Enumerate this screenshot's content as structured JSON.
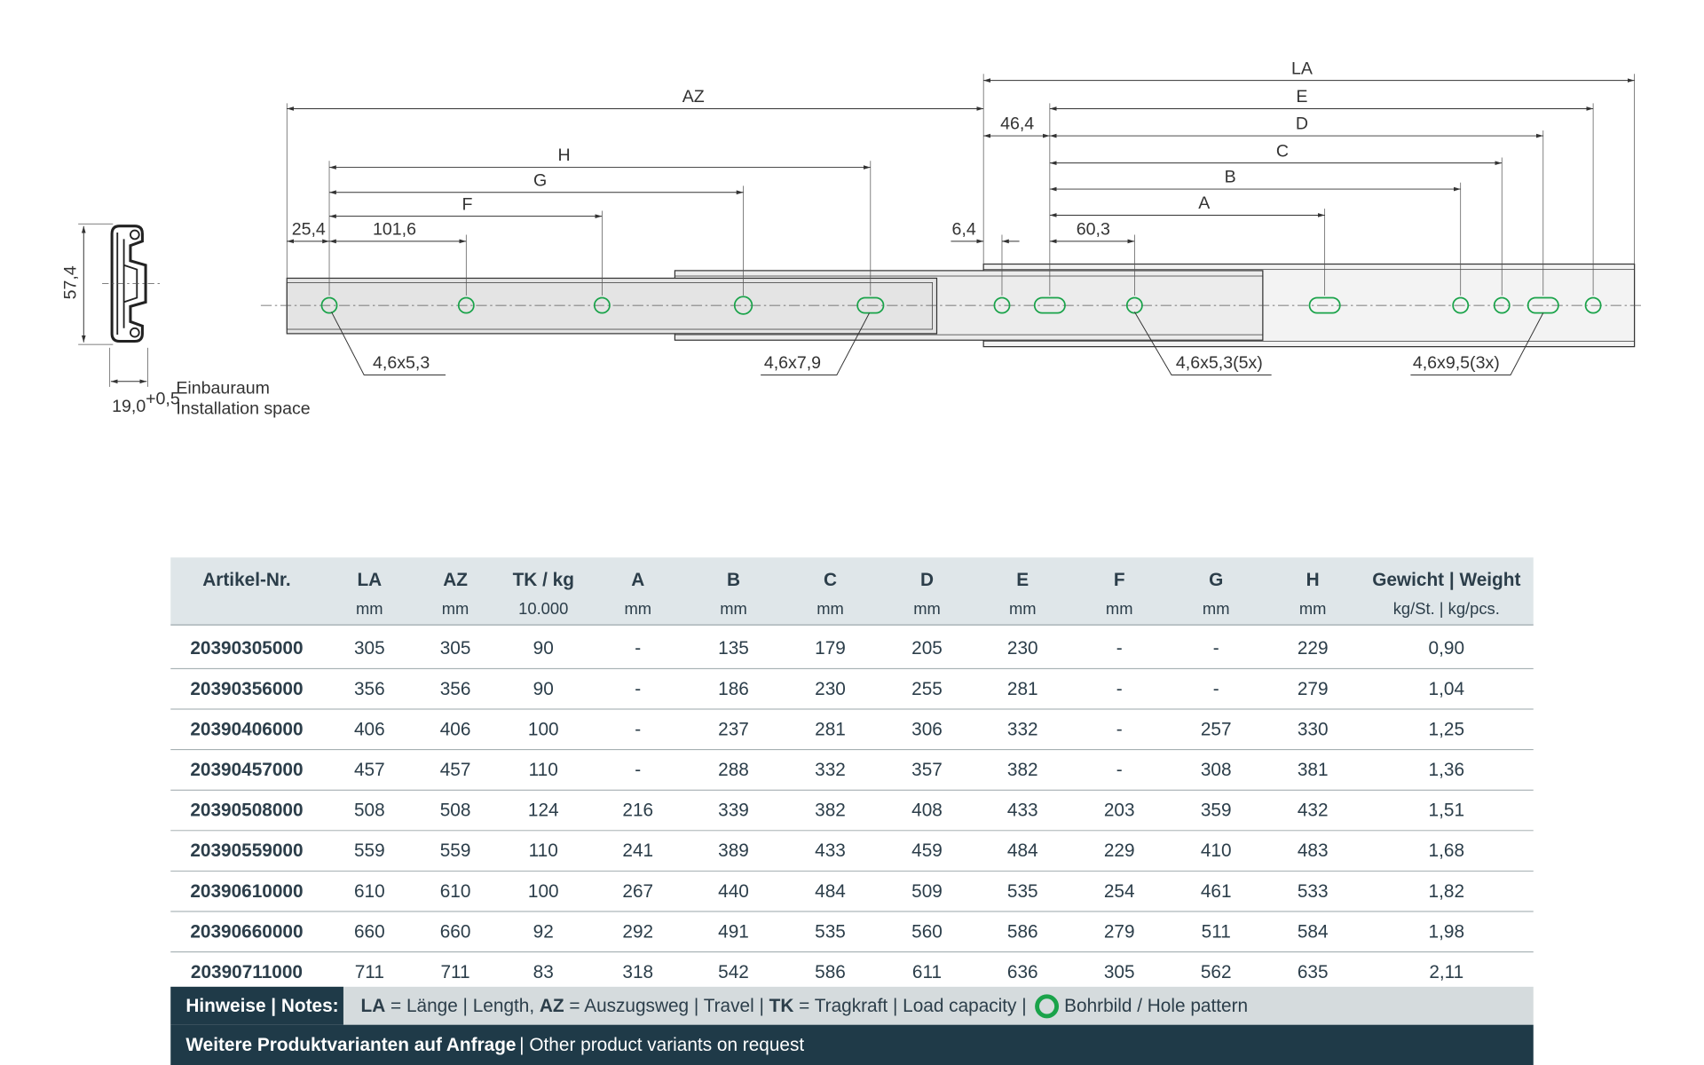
{
  "drawing": {
    "dimensions": [
      "LA",
      "E",
      "D",
      "C",
      "B",
      "A",
      "AZ",
      "46,4",
      "H",
      "G",
      "F",
      "25,4",
      "101,6",
      "6,4",
      "60,3"
    ],
    "callouts": [
      "4,6x5,3",
      "4,6x7,9",
      "4,6x5,3(5x)",
      "4,6x9,5(3x)"
    ],
    "profile": {
      "height": "57,4",
      "width": "19,0",
      "tolerance": "+0,5",
      "label_de": "Einbauraum",
      "label_en": "Installation space"
    }
  },
  "table": {
    "columns": [
      {
        "name": "Artikel-Nr."
      },
      {
        "name": "LA",
        "unit": "mm"
      },
      {
        "name": "AZ",
        "unit": "mm"
      },
      {
        "name": "TK / kg",
        "unit": "10.000"
      },
      {
        "name": "A",
        "unit": "mm"
      },
      {
        "name": "B",
        "unit": "mm"
      },
      {
        "name": "C",
        "unit": "mm"
      },
      {
        "name": "D",
        "unit": "mm"
      },
      {
        "name": "E",
        "unit": "mm"
      },
      {
        "name": "F",
        "unit": "mm"
      },
      {
        "name": "G",
        "unit": "mm"
      },
      {
        "name": "H",
        "unit": "mm"
      },
      {
        "name": "Gewicht | Weight",
        "unit": "kg/St. | kg/pcs."
      }
    ],
    "rows": [
      [
        "20390305000",
        "305",
        "305",
        "90",
        "-",
        "135",
        "179",
        "205",
        "230",
        "-",
        "-",
        "229",
        "0,90"
      ],
      [
        "20390356000",
        "356",
        "356",
        "90",
        "-",
        "186",
        "230",
        "255",
        "281",
        "-",
        "-",
        "279",
        "1,04"
      ],
      [
        "20390406000",
        "406",
        "406",
        "100",
        "-",
        "237",
        "281",
        "306",
        "332",
        "-",
        "257",
        "330",
        "1,25"
      ],
      [
        "20390457000",
        "457",
        "457",
        "110",
        "-",
        "288",
        "332",
        "357",
        "382",
        "-",
        "308",
        "381",
        "1,36"
      ],
      [
        "20390508000",
        "508",
        "508",
        "124",
        "216",
        "339",
        "382",
        "408",
        "433",
        "203",
        "359",
        "432",
        "1,51"
      ],
      [
        "20390559000",
        "559",
        "559",
        "110",
        "241",
        "389",
        "433",
        "459",
        "484",
        "229",
        "410",
        "483",
        "1,68"
      ],
      [
        "20390610000",
        "610",
        "610",
        "100",
        "267",
        "440",
        "484",
        "509",
        "535",
        "254",
        "461",
        "533",
        "1,82"
      ],
      [
        "20390660000",
        "660",
        "660",
        "92",
        "292",
        "491",
        "535",
        "560",
        "586",
        "279",
        "511",
        "584",
        "1,98"
      ],
      [
        "20390711000",
        "711",
        "711",
        "83",
        "318",
        "542",
        "586",
        "611",
        "636",
        "305",
        "562",
        "635",
        "2,11"
      ]
    ]
  },
  "notes": {
    "title": "Hinweise | Notes:",
    "segments": [
      {
        "text": "LA",
        "bold": true
      },
      {
        "text": " = Länge | Length, "
      },
      {
        "text": "AZ",
        "bold": true
      },
      {
        "text": " = Auszugsweg | Travel | "
      },
      {
        "text": "TK",
        "bold": true
      },
      {
        "text": " = Tragkraft | Load capacity | "
      }
    ],
    "hole_pattern": "Bohrbild / Hole pattern"
  },
  "footer": {
    "bold": "Weitere Produktvarianten auf Anfrage",
    "text": "| Other product variants on request"
  }
}
